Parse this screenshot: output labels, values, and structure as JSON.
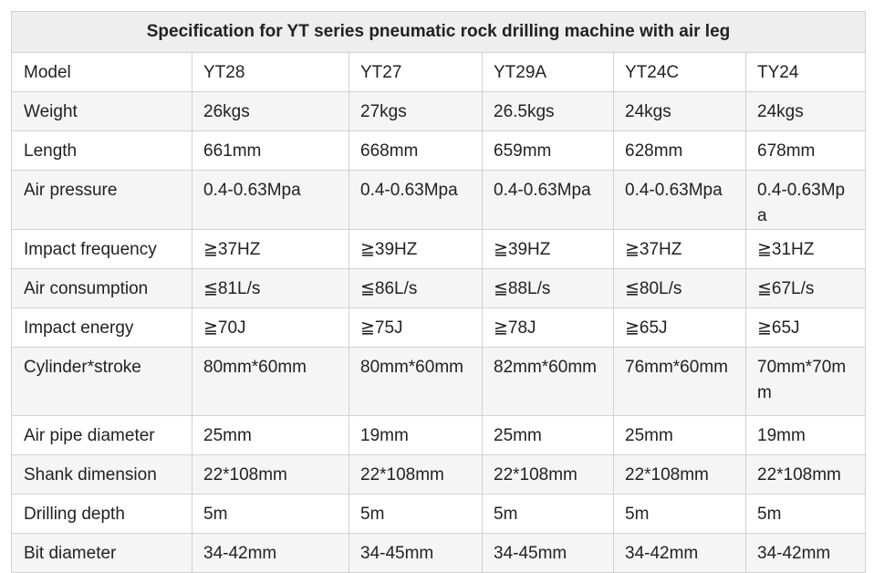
{
  "table": {
    "caption": "Specification for YT series pneumatic rock drilling machine with air leg",
    "rows": [
      [
        "Model",
        "YT28",
        "YT27",
        "YT29A",
        "YT24C",
        "TY24"
      ],
      [
        "Weight",
        "26kgs",
        "27kgs",
        "26.5kgs",
        "24kgs",
        "24kgs"
      ],
      [
        "Length",
        "661mm",
        "668mm",
        "659mm",
        "628mm",
        "678mm"
      ],
      [
        "Air pressure",
        "0.4-0.63Mpa",
        "0.4-0.63Mpa",
        "0.4-0.63Mpa",
        "0.4-0.63Mpa",
        "0.4-0.63Mpa"
      ],
      [
        "Impact frequency",
        "≧37HZ",
        "≧39HZ",
        "≧39HZ",
        "≧37HZ",
        "≧31HZ"
      ],
      [
        "Air consumption",
        "≦81L/s",
        "≦86L/s",
        "≦88L/s",
        "≦80L/s",
        "≦67L/s"
      ],
      [
        "Impact energy",
        "≧70J",
        "≧75J",
        "≧78J",
        "≧65J",
        "≧65J"
      ],
      [
        "Cylinder*stroke",
        "80mm*60mm",
        "80mm*60mm",
        "82mm*60mm",
        "76mm*60mm",
        "70mm*70mm"
      ],
      [
        "Air pipe diameter",
        "25mm",
        "19mm",
        "25mm",
        "25mm",
        "19mm"
      ],
      [
        "Shank dimension",
        "22*108mm",
        "22*108mm",
        "22*108mm",
        "22*108mm",
        "22*108mm"
      ],
      [
        "Drilling depth",
        "5m",
        "5m",
        "5m",
        "5m",
        "5m"
      ],
      [
        "Bit diameter",
        "34-42mm",
        "34-45mm",
        "34-45mm",
        "34-42mm",
        "34-42mm"
      ]
    ]
  }
}
